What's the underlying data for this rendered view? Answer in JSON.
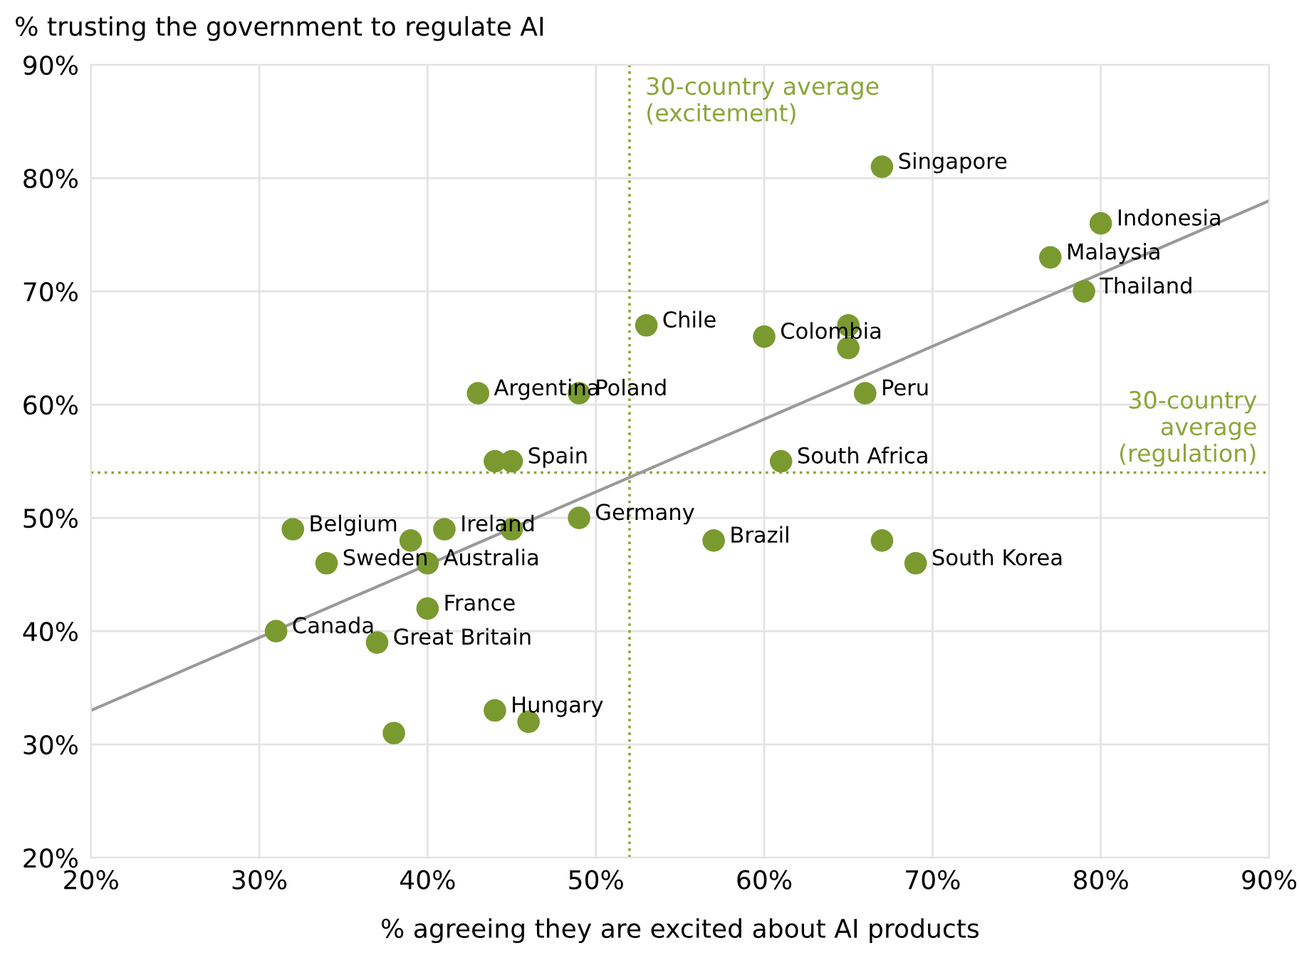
{
  "chart_data": {
    "type": "scatter",
    "xlabel": "% agreeing they are excited about AI products",
    "ylabel": "% trusting the government to regulate AI",
    "xlim": [
      20,
      90
    ],
    "ylim": [
      20,
      90
    ],
    "xticks": [
      {
        "value": 20,
        "label": "20%"
      },
      {
        "value": 30,
        "label": "30%"
      },
      {
        "value": 40,
        "label": "40%"
      },
      {
        "value": 50,
        "label": "50%"
      },
      {
        "value": 60,
        "label": "60%"
      },
      {
        "value": 70,
        "label": "70%"
      },
      {
        "value": 80,
        "label": "80%"
      },
      {
        "value": 90,
        "label": "90%"
      }
    ],
    "yticks": [
      {
        "value": 20,
        "label": "20%"
      },
      {
        "value": 30,
        "label": "30%"
      },
      {
        "value": 40,
        "label": "40%"
      },
      {
        "value": 50,
        "label": "50%"
      },
      {
        "value": 60,
        "label": "60%"
      },
      {
        "value": 70,
        "label": "70%"
      },
      {
        "value": 80,
        "label": "80%"
      },
      {
        "value": 90,
        "label": "90%"
      }
    ],
    "grid": true,
    "series": [
      {
        "type": "line",
        "color": "#999999",
        "x": [
          20,
          90
        ],
        "values": [
          33,
          78
        ]
      },
      {
        "marker": "circle",
        "color": "#7a9a30",
        "x": [
          67,
          80,
          77,
          79,
          53,
          60,
          65,
          65,
          66,
          43,
          49,
          44,
          45,
          61,
          49,
          32,
          41,
          45,
          39,
          57,
          67,
          69,
          34,
          40,
          40,
          31,
          37,
          44,
          46,
          38
        ],
        "values": [
          81,
          76,
          73,
          70,
          67,
          66,
          67,
          65,
          61,
          61,
          61,
          55,
          55,
          55,
          50,
          49,
          49,
          49,
          48,
          48,
          48,
          46,
          46,
          46,
          42,
          40,
          39,
          33,
          32,
          31
        ]
      }
    ],
    "ref_lines": [
      {
        "axis": "x",
        "value": 52,
        "label": "30-country average\n(excitement)",
        "color": "#8aa63a",
        "line_style": "dotted"
      },
      {
        "axis": "y",
        "value": 54,
        "label": "30-country\naverage\n(regulation)",
        "color": "#8aa63a",
        "line_style": "dotted"
      }
    ],
    "annotations": [
      {
        "text": "Singapore",
        "x": 67,
        "y": 81
      },
      {
        "text": "Indonesia",
        "x": 80,
        "y": 76
      },
      {
        "text": "Malaysia",
        "x": 77,
        "y": 73
      },
      {
        "text": "Thailand",
        "x": 79,
        "y": 70
      },
      {
        "text": "Chile",
        "x": 53,
        "y": 67
      },
      {
        "text": "Colombia",
        "x": 60,
        "y": 66
      },
      {
        "text": "Peru",
        "x": 66,
        "y": 61
      },
      {
        "text": "Argentina",
        "x": 43,
        "y": 61
      },
      {
        "text": "Poland",
        "x": 49,
        "y": 61
      },
      {
        "text": "Spain",
        "x": 45,
        "y": 55
      },
      {
        "text": "South Africa",
        "x": 61,
        "y": 55
      },
      {
        "text": "Germany",
        "x": 49,
        "y": 50
      },
      {
        "text": "Belgium",
        "x": 32,
        "y": 49
      },
      {
        "text": "Ireland",
        "x": 41,
        "y": 49
      },
      {
        "text": "Brazil",
        "x": 57,
        "y": 48
      },
      {
        "text": "South Korea",
        "x": 69,
        "y": 46
      },
      {
        "text": "Sweden",
        "x": 34,
        "y": 46
      },
      {
        "text": "Australia",
        "x": 40,
        "y": 46
      },
      {
        "text": "France",
        "x": 40,
        "y": 42
      },
      {
        "text": "Canada",
        "x": 31,
        "y": 40
      },
      {
        "text": "Great Britain",
        "x": 37,
        "y": 39
      },
      {
        "text": "Hungary",
        "x": 44,
        "y": 33
      }
    ]
  }
}
